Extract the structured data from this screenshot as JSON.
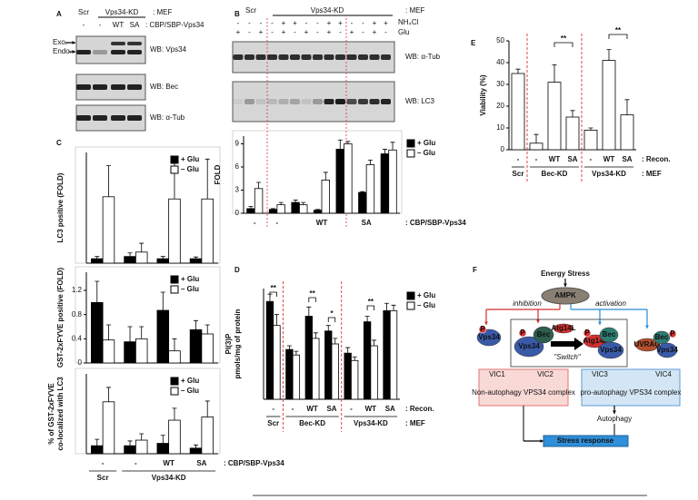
{
  "panel_labels": [
    "A",
    "B",
    "C",
    "D",
    "E",
    "F"
  ],
  "blot_a": {
    "header": [
      "Scr",
      "Vps34-KD",
      ": MEF"
    ],
    "lanes": [
      "-",
      "-",
      "WT",
      "SA"
    ],
    "lane_label": ": CBP/SBP-Vps34",
    "markers": [
      "Exo.",
      "Endo."
    ],
    "rows": [
      "WB: Vps34",
      "WB: Bec",
      "WB: α-Tub"
    ]
  },
  "blot_b": {
    "header": [
      "Scr",
      "Vps34-KD",
      ": MEF"
    ],
    "nh4cl_label": "NH₄Cl",
    "glu_label": "Glu",
    "nh4cl": [
      "-",
      "-",
      "-",
      "-",
      "+",
      "+",
      "-",
      "-",
      "+",
      "+",
      "-",
      "-",
      "+",
      "+"
    ],
    "glu": [
      "+",
      "-",
      "+",
      "-",
      "+",
      "-",
      "+",
      "-",
      "+",
      "-",
      "+",
      "-",
      "+",
      "-"
    ],
    "rows": [
      "WB: α-Tub",
      "WB: LC3"
    ]
  },
  "chart_data": [
    {
      "type": "bar",
      "y_label": [
        "LC3 positive (FOLD)"
      ],
      "ylim": [
        0,
        25
      ],
      "series": [
        {
          "name": "+ Glu",
          "color": "#000000",
          "values": [
            1,
            1.5,
            1,
            1
          ],
          "errors": [
            0.5,
            0.8,
            0.5,
            0.4
          ]
        },
        {
          "name": "– Glu",
          "color": "#ffffff",
          "values": [
            15,
            2.5,
            14.5,
            14.5
          ],
          "errors": [
            7,
            2,
            9,
            9
          ]
        }
      ]
    },
    {
      "type": "bar",
      "y_label": [
        "GST-2xFYVE positive (FOLD)"
      ],
      "ylim": [
        0,
        1.5
      ],
      "yticks": [
        0,
        0.4,
        0.8,
        1.2
      ],
      "series": [
        {
          "name": "+ Glu",
          "color": "#000000",
          "values": [
            1.0,
            0.35,
            0.87,
            0.55
          ],
          "errors": [
            0.35,
            0.25,
            0.3,
            0.15
          ]
        },
        {
          "name": "– Glu",
          "color": "#ffffff",
          "values": [
            0.38,
            0.4,
            0.2,
            0.48
          ],
          "errors": [
            0.25,
            0.2,
            0.2,
            0.15
          ]
        }
      ]
    },
    {
      "type": "bar",
      "y_label": [
        "% of GST-2xFYVE",
        "co-localized with LC3"
      ],
      "ylim": [
        0,
        100
      ],
      "categories": [
        "-",
        "-",
        "WT",
        "SA"
      ],
      "groups": [
        "Scr",
        "Vps34-KD"
      ],
      "notes": [
        ": CBP/SBP-Vps34"
      ],
      "series": [
        {
          "name": "+ Glu",
          "color": "#000000",
          "values": [
            10,
            10,
            13,
            7
          ],
          "errors": [
            8,
            6,
            10,
            4
          ]
        },
        {
          "name": "– Glu",
          "color": "#ffffff",
          "values": [
            65,
            17,
            42,
            46
          ],
          "errors": [
            18,
            8,
            15,
            20
          ]
        }
      ]
    },
    {
      "type": "bar",
      "y_label": [
        "FOLD"
      ],
      "ylim": [
        0,
        10
      ],
      "yticks": [
        0,
        3,
        6,
        9
      ],
      "categories": [
        "-",
        "-",
        null,
        "WT",
        null,
        "SA",
        null
      ],
      "notes": [
        ": CBP/SBP-Vps34"
      ],
      "series": [
        {
          "name": "+ Glu",
          "color": "#000000",
          "values": [
            0.6,
            0.5,
            1.4,
            0.4,
            8.3,
            2.7,
            7.7
          ],
          "errors": [
            0.3,
            0.1,
            0.3,
            0.1,
            1.2,
            0.1,
            0.6
          ]
        },
        {
          "name": "– Glu",
          "color": "#ffffff",
          "values": [
            3.2,
            1.1,
            1.1,
            4.3,
            9.0,
            6.3,
            8.2
          ],
          "errors": [
            0.8,
            0.3,
            0.3,
            1.0,
            0.3,
            0.6,
            1.0
          ]
        }
      ]
    },
    {
      "type": "bar",
      "y_label": [
        "PI(3)P",
        "pmols/mg of protein"
      ],
      "ylim": [
        0,
        60
      ],
      "categories": [
        "-",
        "-",
        "WT",
        "SA",
        "-",
        "WT",
        "SA"
      ],
      "groups": [
        "Scr",
        "Bec-KD",
        "Vps34-KD"
      ],
      "notes": [
        ": Recon.",
        ": MEF"
      ],
      "annotations": [
        "**",
        "**",
        "*",
        "**"
      ],
      "series": [
        {
          "name": "+ Glu",
          "color": "#000000",
          "values": [
            53,
            27,
            45,
            37,
            25,
            42,
            48
          ],
          "errors": [
            4,
            2,
            5,
            3,
            3,
            3,
            4
          ]
        },
        {
          "name": "– Glu",
          "color": "#ffffff",
          "values": [
            40,
            24,
            33,
            30,
            21,
            29,
            48
          ],
          "errors": [
            6,
            2,
            3,
            3,
            2,
            3,
            3
          ]
        }
      ]
    },
    {
      "type": "bar",
      "y_label": [
        "Viability (%)"
      ],
      "ylim": [
        0,
        50
      ],
      "yticks": [
        0,
        10,
        20,
        30,
        40,
        50
      ],
      "categories": [
        "-",
        "-",
        "WT",
        "SA",
        "-",
        "WT",
        "SA"
      ],
      "groups": [
        "Scr",
        "Bec-KD",
        "Vps34-KD"
      ],
      "notes": [
        ": Recon.",
        ": MEF"
      ],
      "annotations": [
        "**",
        "**"
      ],
      "series": [
        {
          "color": "#ffffff",
          "values": [
            35,
            3,
            31,
            15,
            9,
            41,
            16
          ],
          "errors": [
            2,
            4,
            8,
            3,
            1,
            5,
            7
          ]
        }
      ]
    }
  ],
  "diagram": {
    "energy_stress": "Energy Stress",
    "ampk": "AMPK",
    "inhibition": "inhibition",
    "activation": "activation",
    "phospho": "P",
    "vic1_protein": "Vps34",
    "vic2_proteins": [
      "Vps34",
      "Bec"
    ],
    "atg14l": "Atg14L",
    "switch": "\"Switch\"",
    "vic3_proteins": [
      "Atg14L",
      "Bec",
      "Vps34"
    ],
    "vic4_proteins": [
      "UVRAG",
      "Bec",
      "Vps34"
    ],
    "complexes": [
      "VIC1",
      "VIC2",
      "VIC3",
      "VIC4"
    ],
    "non_autophagy": "Non-autophagy VPS34 complex",
    "pro_autophagy": "pro-autophagy VPS34 complex",
    "autophagy": "Autophagy",
    "stress_response": "Stress response"
  }
}
